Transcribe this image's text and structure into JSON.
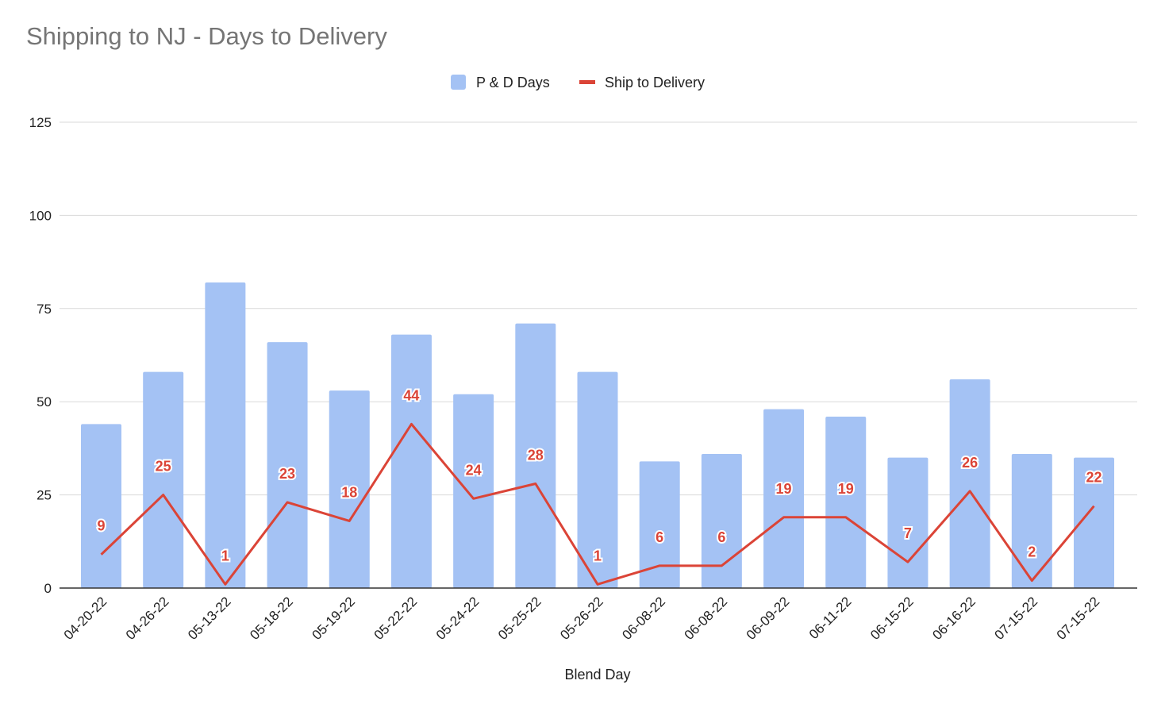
{
  "chart_data": {
    "type": "bar",
    "title": "Shipping to NJ - Days to Delivery",
    "xlabel": "Blend Day",
    "ylabel": "",
    "ylim": [
      0,
      125
    ],
    "yticks": [
      0,
      25,
      50,
      75,
      100,
      125
    ],
    "grid": true,
    "legend_position": "top-center",
    "categories": [
      "04-20-22",
      "04-26-22",
      "05-13-22",
      "05-18-22",
      "05-19-22",
      "05-22-22",
      "05-24-22",
      "05-25-22",
      "05-26-22",
      "06-08-22",
      "06-08-22",
      "06-09-22",
      "06-11-22",
      "06-15-22",
      "06-16-22",
      "07-15-22",
      "07-15-22"
    ],
    "series": [
      {
        "name": "P & D Days",
        "kind": "bar",
        "color": "#a4c2f4",
        "values": [
          44,
          58,
          82,
          66,
          53,
          68,
          52,
          71,
          58,
          34,
          36,
          48,
          46,
          35,
          56,
          36,
          35
        ]
      },
      {
        "name": "Ship to Delivery",
        "kind": "line",
        "color": "#db4437",
        "data_labels": true,
        "values": [
          9,
          25,
          1,
          23,
          18,
          44,
          24,
          28,
          1,
          6,
          6,
          19,
          19,
          7,
          26,
          2,
          22
        ]
      }
    ]
  }
}
